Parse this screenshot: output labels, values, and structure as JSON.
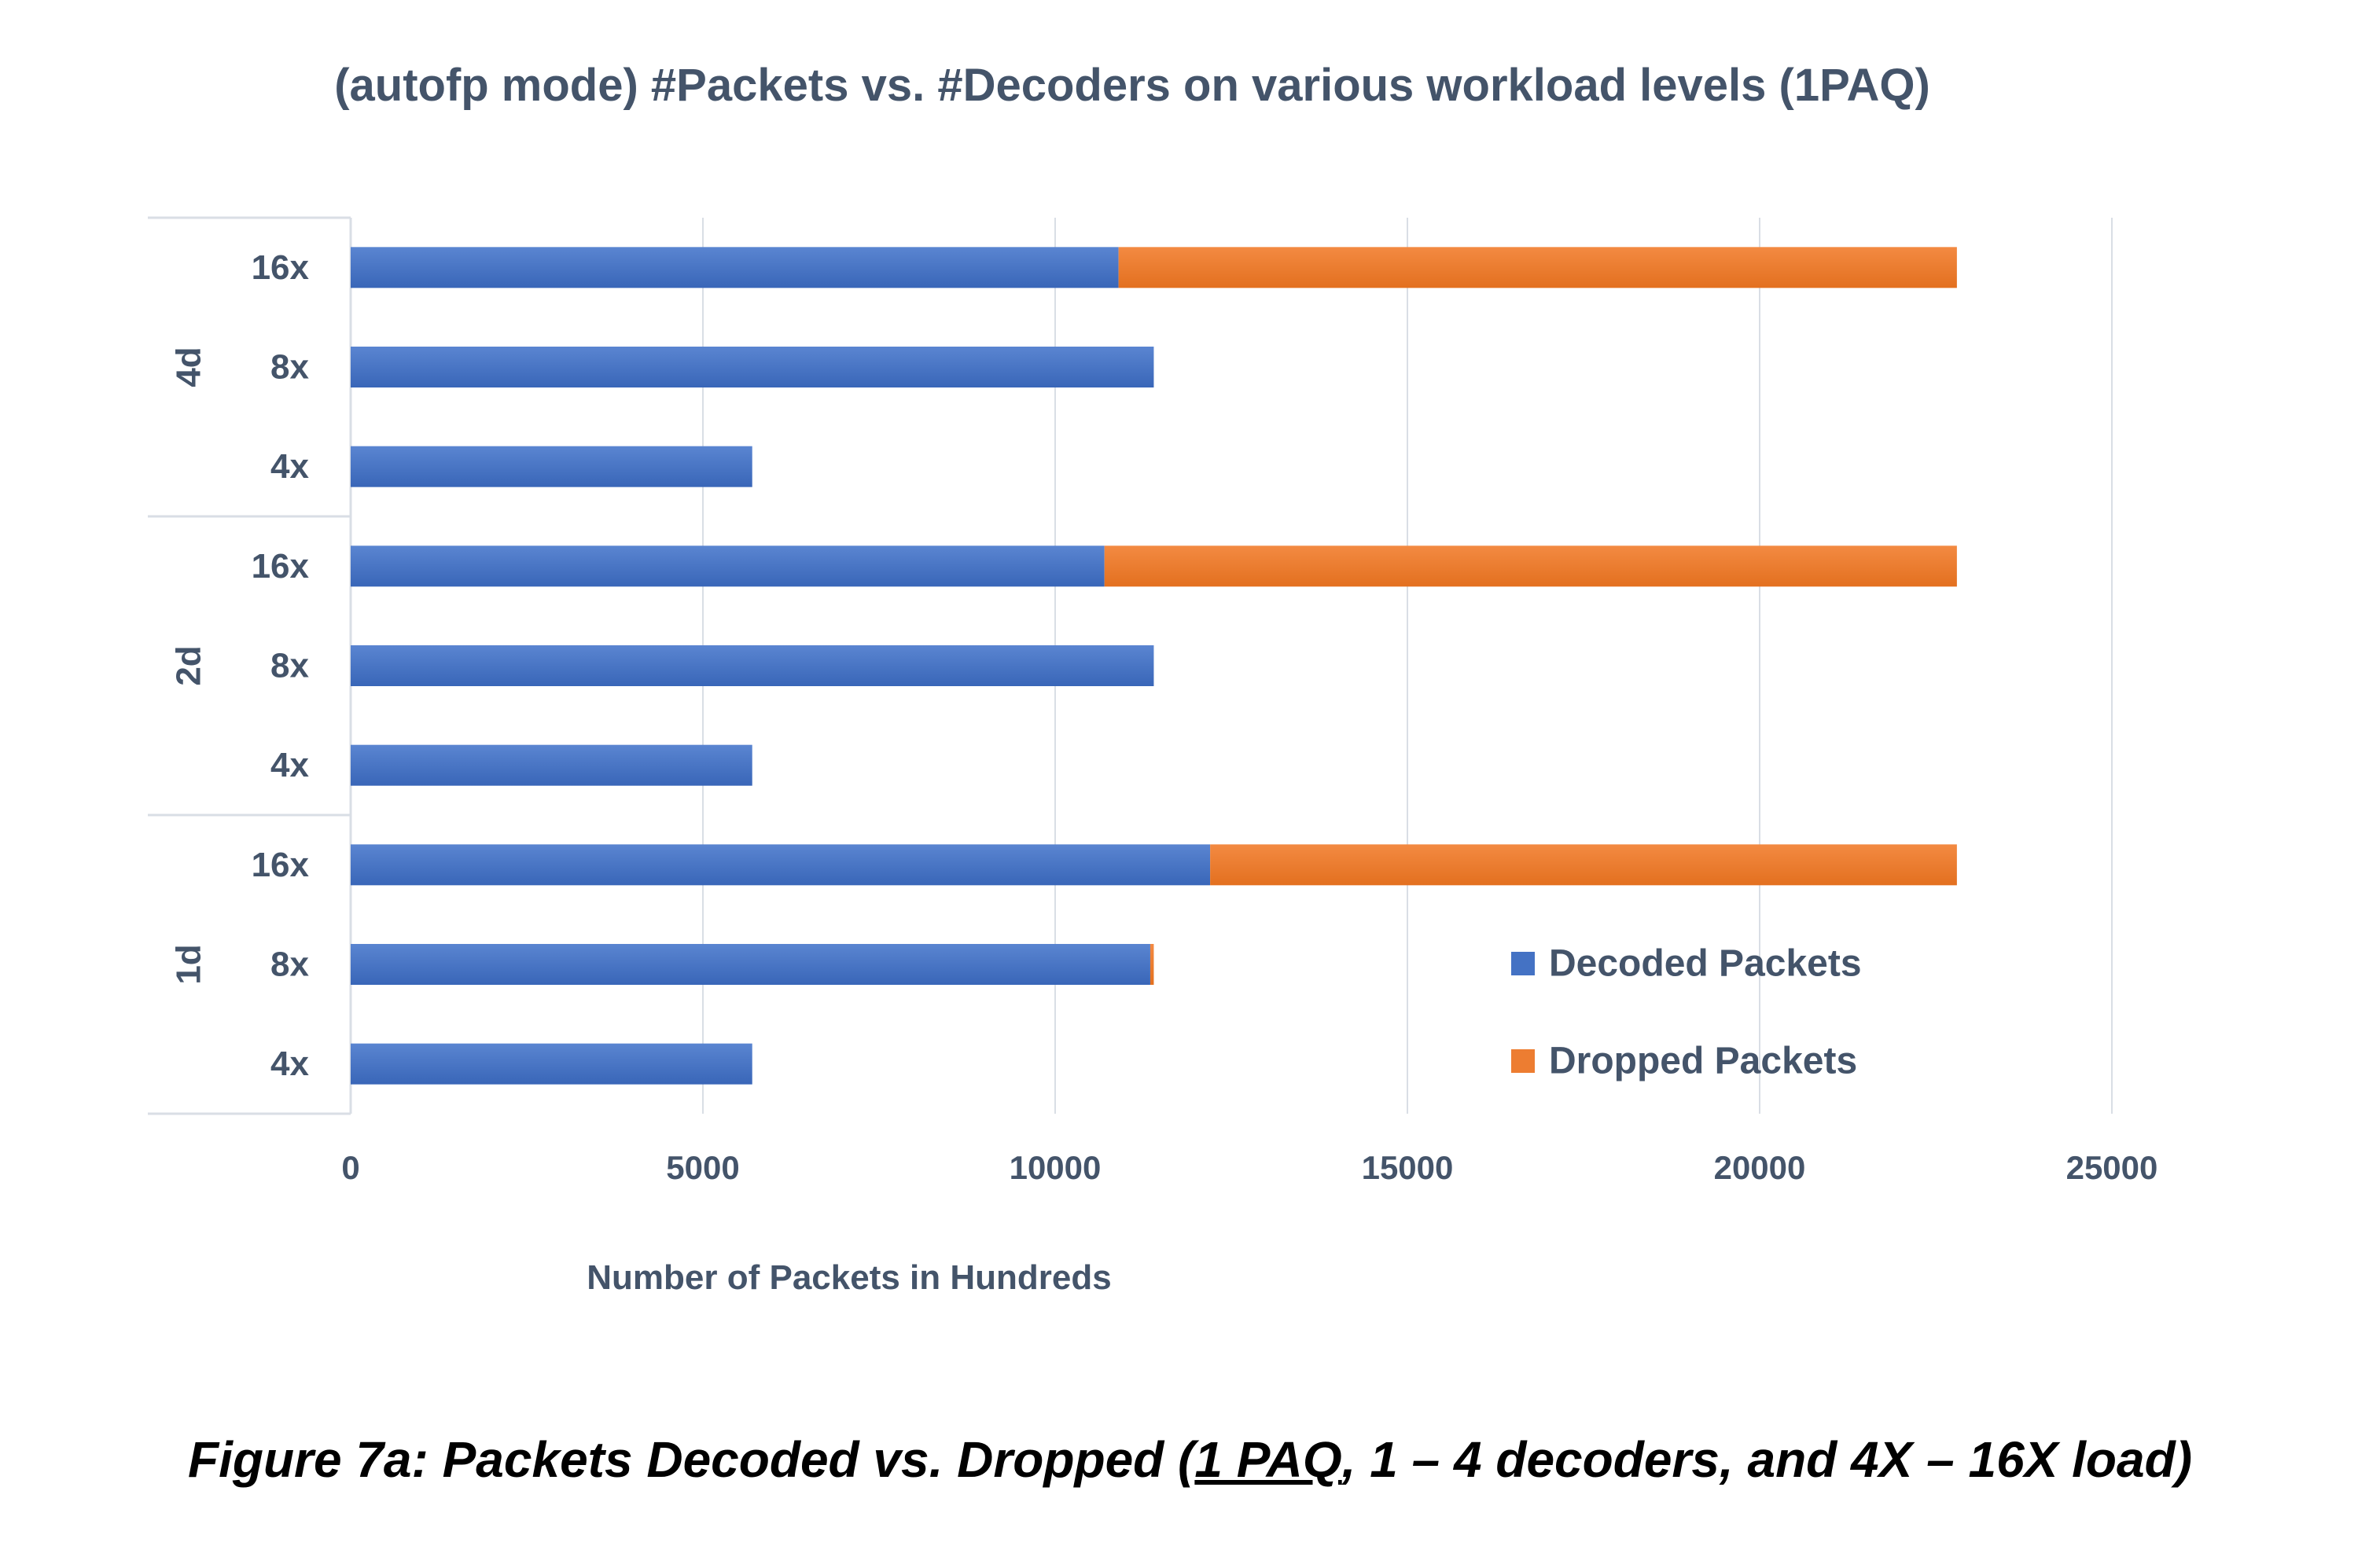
{
  "chart_data": {
    "type": "bar",
    "orientation": "horizontal",
    "stacked": true,
    "title": "(autofp mode) #Packets vs. #Decoders on various workload levels (1PAQ)",
    "xlabel": "Number of Packets in Hundreds",
    "ylabel": "",
    "xlim": [
      0,
      25000
    ],
    "x_ticks": [
      "0",
      "5000",
      "10000",
      "15000",
      "20000",
      "25000"
    ],
    "grid": "vertical",
    "legend_position": "right",
    "groups": [
      {
        "label": "4d",
        "categories": [
          "16x",
          "8x",
          "4x"
        ]
      },
      {
        "label": "2d",
        "categories": [
          "16x",
          "8x",
          "4x"
        ]
      },
      {
        "label": "1d",
        "categories": [
          "16x",
          "8x",
          "4x"
        ]
      }
    ],
    "series": [
      {
        "name": "Decoded Packets",
        "color": "#4472c4",
        "values": [
          10900,
          11400,
          5700,
          10700,
          11400,
          5700,
          12200,
          11350,
          5700
        ]
      },
      {
        "name": "Dropped Packets",
        "color": "#ed7d31",
        "values": [
          11900,
          0,
          0,
          12100,
          0,
          0,
          10600,
          50,
          0
        ]
      }
    ]
  },
  "caption": {
    "prefix": "Figure 7a: Packets Decoded vs. Dropped  (",
    "underlined": "1 PAQ",
    "suffix": ", 1 – 4 decoders, and 4X – 16X load)"
  }
}
